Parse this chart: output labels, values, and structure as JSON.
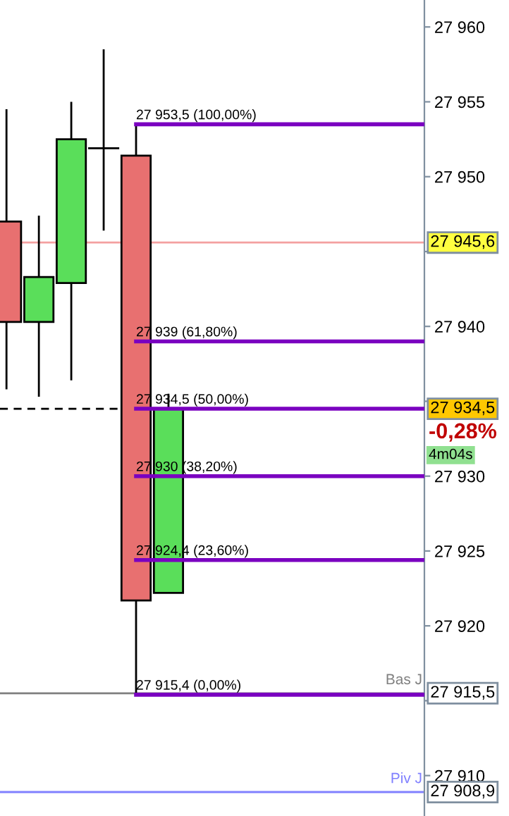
{
  "chart_data": {
    "type": "candlestick",
    "categories": [
      null,
      null,
      null,
      null,
      null,
      null,
      null,
      null,
      null,
      null,
      null,
      null,
      null
    ],
    "ohlc": [
      [
        27947.0,
        27954.5,
        27935.8,
        27940.3
      ],
      [
        27940.3,
        27947.4,
        27935.3,
        27943.3
      ],
      [
        27942.9,
        27955.0,
        27936.4,
        27952.5
      ],
      [
        27951.9,
        27958.5,
        27946.4,
        27951.9
      ],
      [
        27951.4,
        27953.5,
        27915.4,
        27921.7
      ],
      [
        27922.2,
        27935.5,
        27922.2,
        27934.5
      ],
      null,
      null,
      null,
      null,
      null,
      null,
      null
    ],
    "colors": [
      "#e87070",
      "#5ade5a",
      "#5ade5a",
      "#000000",
      "#e87070",
      "#5ade5a",
      null,
      null,
      null,
      null,
      null,
      null,
      null
    ],
    "ylim": [
      27907.3,
      27961.8
    ],
    "yticks": [
      27910,
      {
        "value": 27915,
        "label": null
      },
      27920,
      27925,
      27930,
      {
        "value": 27935,
        "label": null
      },
      27940,
      {
        "value": 27945,
        "label": null
      },
      27950,
      27955,
      27960
    ],
    "grid": false,
    "ref_lines": [
      {
        "axis": "y",
        "value": 27953.5,
        "label": "27 953,5 (100,00%)",
        "color": "#7a00c0"
      },
      {
        "axis": "y",
        "value": 27939,
        "label": "27 939 (61,80%)",
        "color": "#7a00c0"
      },
      {
        "axis": "y",
        "value": 27934.5,
        "label": "27 934,5 (50,00%)",
        "color": "#7a00c0"
      },
      {
        "axis": "y",
        "value": 27930,
        "label": "27 930 (38,20%)",
        "color": "#7a00c0"
      },
      {
        "axis": "y",
        "value": 27924.4,
        "label": "27 924,4 (23,60%)",
        "color": "#7a00c0"
      },
      {
        "axis": "y",
        "value": 27915.4,
        "label": "27 915,4 (0,00%)",
        "color": "#7a00c0"
      },
      {
        "axis": "y",
        "value": 27945.6,
        "color": "#f4a0a0"
      },
      {
        "axis": "y",
        "value": 27934.5,
        "color": "#000000",
        "line_style": "dashed"
      },
      {
        "axis": "y",
        "value": 27915.5,
        "color": "#808080"
      },
      {
        "axis": "y",
        "value": 27908.9,
        "color": "#8080ff"
      }
    ],
    "annotations": [
      "27 945,6",
      "27 934,5",
      "27 915,5",
      "27 908,9",
      "Bas J",
      "Piv J",
      "-0,28%",
      "4m04s"
    ]
  }
}
